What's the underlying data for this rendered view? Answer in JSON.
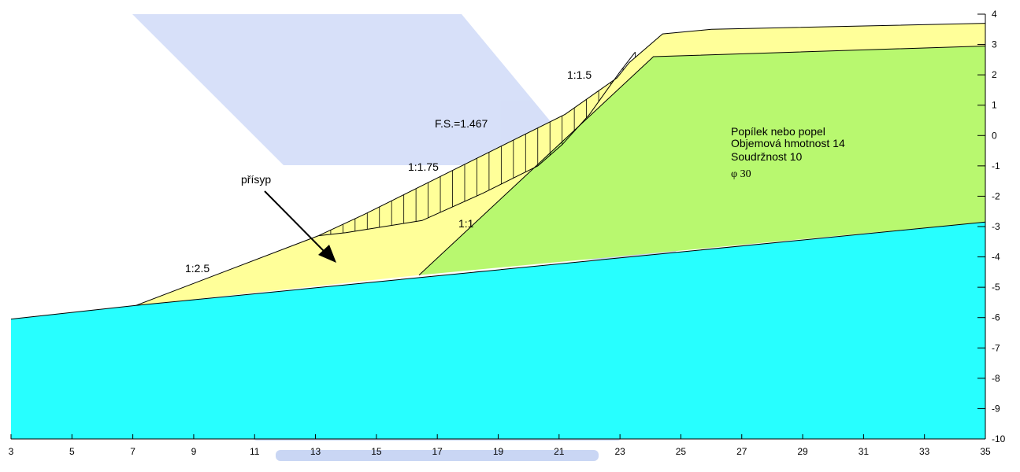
{
  "chart_data": {
    "type": "diagram",
    "x_axis": {
      "min": 3,
      "max": 35,
      "ticks": [
        3,
        5,
        7,
        9,
        11,
        13,
        15,
        17,
        19,
        21,
        23,
        25,
        27,
        29,
        31,
        33,
        35
      ]
    },
    "y_axis": {
      "min": -10,
      "max": 4,
      "ticks": [
        4,
        3,
        2,
        1,
        0,
        -1,
        -2,
        -3,
        -4,
        -5,
        -6,
        -7,
        -8,
        -9,
        -10
      ]
    },
    "colors": {
      "base_soil": "#27ffff",
      "ash_fill": "#b8f86f",
      "embankment": "#ffff99",
      "outline": "#000000"
    },
    "annotations": {
      "fs": "F.S.=1.467",
      "slope_1_1_5": "1:1.5",
      "slope_1_1_75": "1:1.75",
      "slope_1_2_5": "1:2.5",
      "slope_1_1": "1:1",
      "prisyp": "přísyp"
    },
    "material": {
      "name": "Popílek nebo popel",
      "unit_weight": "Objemová hmotnost 14",
      "cohesion": "Soudržnost 10",
      "phi": "φ 30"
    },
    "boundaries": {
      "ground_surface": [
        [
          3,
          -6.05
        ],
        [
          7.1,
          -5.6
        ],
        [
          35,
          -2.85
        ]
      ],
      "ash_inner_slope": [
        [
          16.4,
          -4.6
        ],
        [
          24.1,
          2.6
        ],
        [
          35,
          2.95
        ]
      ],
      "outer_top": [
        [
          13.1,
          -3.3
        ],
        [
          14.6,
          -2.6
        ],
        [
          16.7,
          -1.55
        ],
        [
          19,
          -0.4
        ],
        [
          21.2,
          0.7
        ],
        [
          22.9,
          1.9
        ],
        [
          23.3,
          2.4
        ],
        [
          24.4,
          3.35
        ],
        [
          26,
          3.5
        ],
        [
          35,
          3.7
        ]
      ],
      "outer_toe_slope": [
        [
          7.1,
          -5.6
        ],
        [
          13.1,
          -3.3
        ]
      ],
      "slip_surface": [
        [
          13.1,
          -3.3
        ],
        [
          14,
          -3.2
        ],
        [
          16.5,
          -2.8
        ],
        [
          18.5,
          -1.9
        ],
        [
          19.7,
          -1.3
        ],
        [
          20.3,
          -1.0
        ],
        [
          21.1,
          -0.3
        ],
        [
          22,
          0.7
        ],
        [
          23.0,
          2.1
        ],
        [
          23.5,
          2.75
        ]
      ]
    }
  }
}
